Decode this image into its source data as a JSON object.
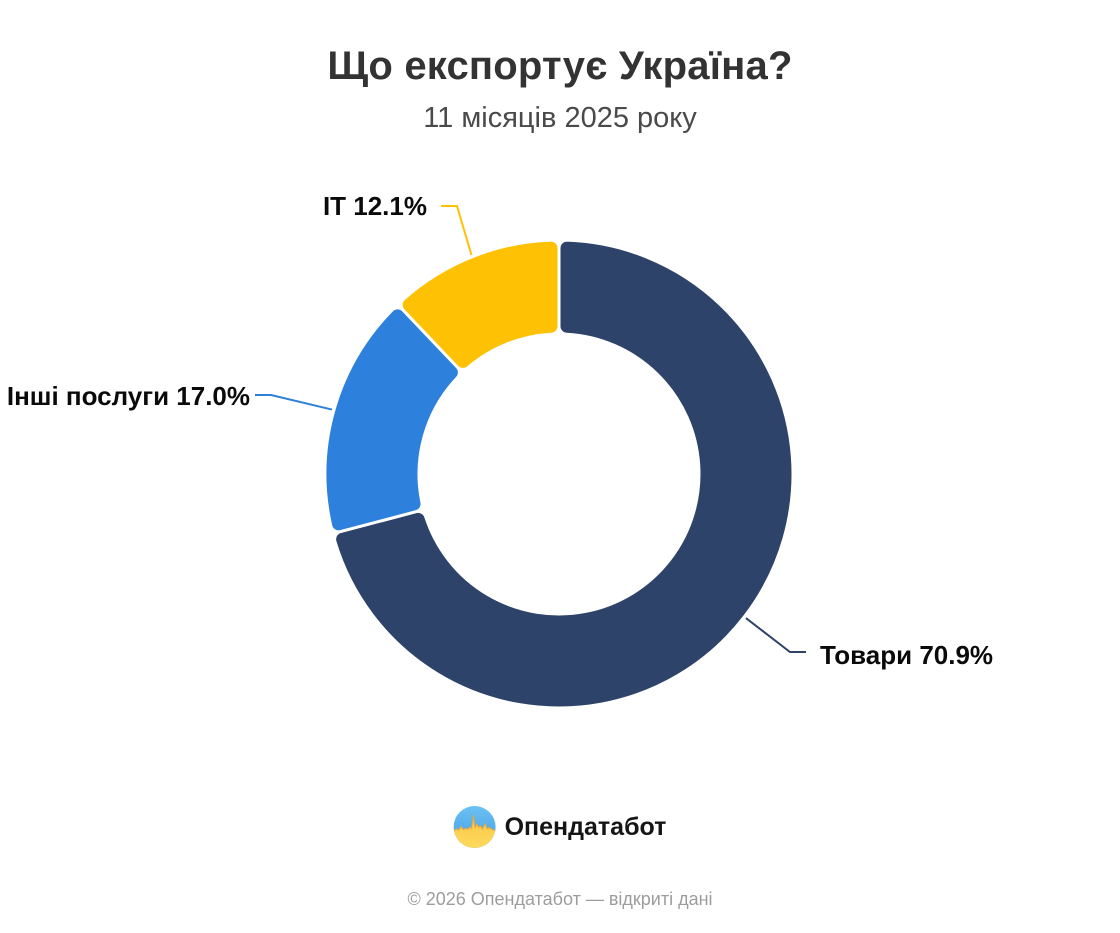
{
  "header": {
    "title": "Що експортує Україна?",
    "subtitle": "11 місяців 2025 року"
  },
  "chart_data": {
    "type": "pie",
    "variant": "donut",
    "title": "Що експортує Україна?",
    "subtitle": "11 місяців 2025 року",
    "unit": "%",
    "total": 100,
    "start_angle_deg": 0,
    "direction": "clockwise",
    "legend": "none",
    "slices": [
      {
        "key": "goods",
        "name": "Товари",
        "value": 70.9,
        "label": "Товари 70.9%",
        "color": "#2E4369"
      },
      {
        "key": "other-services",
        "name": "Інші послуги",
        "value": 17.0,
        "label": "Інші послуги 17.0%",
        "color": "#2D80DB"
      },
      {
        "key": "it",
        "name": "IT",
        "value": 12.1,
        "label": "IT 12.1%",
        "color": "#FEC104"
      }
    ]
  },
  "branding": {
    "brand": "Опендатабот",
    "logo": "opendatabot-pulse-icon",
    "logo_colors": {
      "blue": "#54B1EB",
      "yellow": "#FFD44E",
      "ridge": "#E8A23B"
    },
    "copyright": "© 2026 Опендатабот — відкриті дані"
  }
}
